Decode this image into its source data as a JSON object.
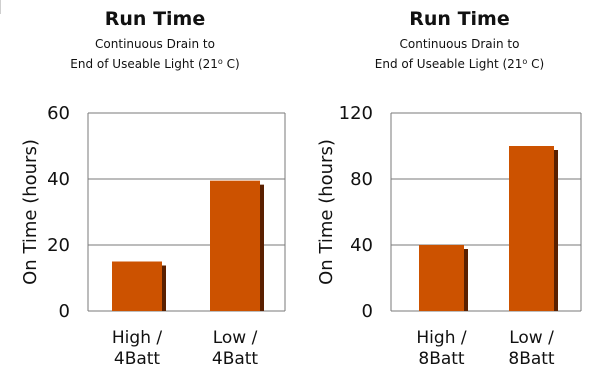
{
  "chart_data": [
    {
      "type": "bar",
      "title": "Run Time",
      "subtitle_line1": "Continuous Drain to",
      "subtitle_line2": "End of Useable Light (21",
      "subtitle_degree": "o",
      "subtitle_unit": " C)",
      "ylabel": "On Time (hours)",
      "ylim": [
        0,
        60
      ],
      "yticks": [
        "0",
        "20",
        "40",
        "60"
      ],
      "categories": [
        [
          "High /",
          "4Batt"
        ],
        [
          "Low /",
          "4Batt"
        ]
      ],
      "values": [
        15,
        39.5
      ],
      "grid": true,
      "bar_color": "#cc5200",
      "shadow_color": "#5a2000"
    },
    {
      "type": "bar",
      "title": "Run Time",
      "subtitle_line1": "Continuous Drain to",
      "subtitle_line2": "End of Useable Light (21",
      "subtitle_degree": "o",
      "subtitle_unit": " C)",
      "ylabel": "On Time (hours)",
      "ylim": [
        0,
        120
      ],
      "yticks": [
        "0",
        "40",
        "80",
        "120"
      ],
      "categories": [
        [
          "High /",
          "8Batt"
        ],
        [
          "Low /",
          "8Batt"
        ]
      ],
      "values": [
        40,
        100
      ],
      "grid": true,
      "bar_color": "#cc5200",
      "shadow_color": "#5a2000"
    }
  ]
}
